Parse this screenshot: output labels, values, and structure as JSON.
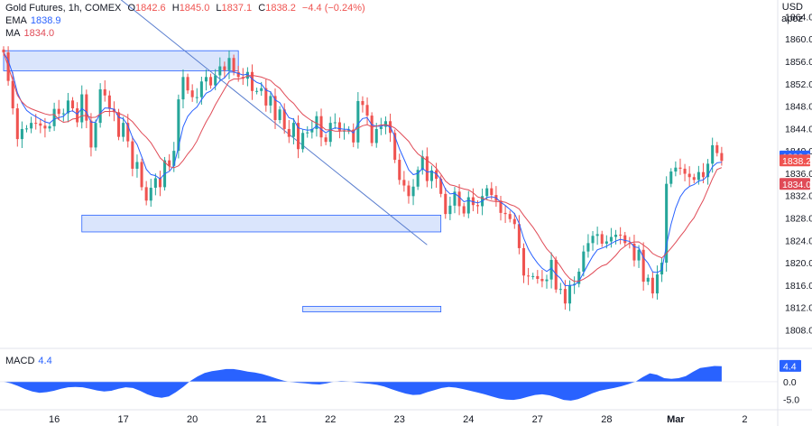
{
  "legend": {
    "title": "Gold Futures, 1h, COMEX",
    "open_label": "O",
    "open": "1842.6",
    "high_label": "H",
    "high": "1845.0",
    "low_label": "L",
    "low": "1837.1",
    "close_label": "C",
    "close": "1838.2",
    "change": "−4.4 (−0.24%)",
    "ema_label": "EMA",
    "ema_value": "1838.9",
    "ma_label": "MA",
    "ma_value": "1834.0",
    "macd_label": "MACD",
    "macd_value": "4.4"
  },
  "axis": {
    "unit_line1": "USD",
    "unit_line2": "apoz"
  },
  "colors": {
    "up": "#26a69a",
    "down": "#ef5350",
    "ema": "#2962ff",
    "ma": "#e04b57",
    "zone_fill": "#d4e1fb",
    "zone_stroke": "#2962ff",
    "trend": "#5b7fcf",
    "macd_fill": "#2962ff",
    "close_tag": "#ef5350",
    "ema_tag": "#2962ff",
    "ma_tag": "#e04b57"
  },
  "chart_data": {
    "type": "candlestick",
    "ylim": [
      1805,
      1866
    ],
    "y_ticks": [
      "1808.0",
      "1812.0",
      "1816.0",
      "1820.0",
      "1824.0",
      "1828.0",
      "1832.0",
      "1836.0",
      "1840.0",
      "1844.0",
      "1848.0",
      "1852.0",
      "1856.0",
      "1860.0",
      "1864.0"
    ],
    "x_ticks": [
      {
        "label": "16",
        "bar": 11
      },
      {
        "label": "17",
        "bar": 26
      },
      {
        "label": "20",
        "bar": 41
      },
      {
        "label": "21",
        "bar": 56
      },
      {
        "label": "22",
        "bar": 71
      },
      {
        "label": "23",
        "bar": 86
      },
      {
        "label": "24",
        "bar": 101
      },
      {
        "label": "27",
        "bar": 116
      },
      {
        "label": "28",
        "bar": 131
      },
      {
        "label": "Mar",
        "bar": 146
      },
      {
        "label": "2",
        "bar": 161
      }
    ],
    "x_max_bar": 167,
    "closes": [
      1857.6,
      1852.5,
      1847.6,
      1842.1,
      1843.9,
      1844.0,
      1845.0,
      1844.9,
      1844.5,
      1844.0,
      1844.4,
      1847.5,
      1846.6,
      1846.7,
      1849.0,
      1847.6,
      1845.1,
      1850.1,
      1845.4,
      1840.6,
      1845.0,
      1851.0,
      1849.9,
      1847.5,
      1846.9,
      1842.5,
      1845.0,
      1841.7,
      1836.8,
      1838.0,
      1833.5,
      1831.1,
      1833.4,
      1835.1,
      1833.5,
      1838.3,
      1837.3,
      1840.0,
      1849.2,
      1853.2,
      1850.8,
      1849.6,
      1849.6,
      1852.4,
      1853.2,
      1851.7,
      1853.5,
      1855.1,
      1854.4,
      1856.6,
      1854.1,
      1853.2,
      1852.9,
      1854.1,
      1850.7,
      1850.7,
      1851.2,
      1848.1,
      1849.8,
      1845.5,
      1847.4,
      1843.9,
      1842.5,
      1845.0,
      1840.3,
      1843.2,
      1843.3,
      1843.9,
      1846.2,
      1842.4,
      1841.6,
      1845.0,
      1845.1,
      1843.6,
      1843.6,
      1843.8,
      1841.5,
      1848.9,
      1848.2,
      1846.3,
      1841.4,
      1843.9,
      1844.3,
      1845.3,
      1843.2,
      1838.4,
      1834.8,
      1833.8,
      1831.9,
      1833.6,
      1836.6,
      1839.0,
      1834.6,
      1836.5,
      1835.0,
      1832.3,
      1828.7,
      1830.2,
      1832.7,
      1830.1,
      1828.8,
      1831.7,
      1830.3,
      1830.1,
      1831.9,
      1833.3,
      1832.1,
      1831.1,
      1828.9,
      1828.7,
      1827.8,
      1826.9,
      1822.6,
      1817.7,
      1817.6,
      1817.6,
      1817.1,
      1816.7,
      1817.0,
      1820.5,
      1815.2,
      1815.3,
      1812.7,
      1816.0,
      1816.2,
      1818.4,
      1822.0,
      1823.5,
      1824.8,
      1825.1,
      1823.4,
      1823.8,
      1824.6,
      1825.0,
      1824.9,
      1823.5,
      1823.4,
      1820.4,
      1822.3,
      1816.6,
      1817.3,
      1814.5,
      1817.9,
      1820.0,
      1834.1,
      1836.3,
      1837.0,
      1836.8,
      1835.9,
      1835.3,
      1834.8,
      1836.2,
      1835.3,
      1837.7,
      1841.0,
      1839.6,
      1838.2
    ],
    "series": [
      {
        "name": "EMA",
        "value": 1838.9
      },
      {
        "name": "MA",
        "value": 1834.0
      }
    ],
    "price_tags": [
      {
        "label": "1838.9",
        "value": 1838.9,
        "color_key": "ema_tag"
      },
      {
        "label": "1838.2",
        "value": 1838.2,
        "color_key": "close_tag"
      },
      {
        "label": "1834.0",
        "value": 1834.0,
        "color_key": "ma_tag"
      }
    ],
    "zones": [
      {
        "bar_from": 0,
        "bar_to": 51,
        "y_from": 1854.3,
        "y_to": 1857.9
      },
      {
        "bar_from": 17,
        "bar_to": 95,
        "y_from": 1825.5,
        "y_to": 1828.5
      },
      {
        "bar_from": 65,
        "bar_to": 95,
        "y_from": 1811.2,
        "y_to": 1812.2
      }
    ],
    "trendline": {
      "bar_from": 24,
      "y_from": 1868,
      "bar_to": 92,
      "y_to": 1823.2
    },
    "macd": {
      "ylim": [
        -7.5,
        9
      ],
      "y_ticks": [
        "-5.0",
        "0.0",
        "4.4"
      ],
      "values": [
        0.0,
        -0.5,
        -1.2,
        -2.1,
        -2.8,
        -3.2,
        -3.0,
        -2.6,
        -2.0,
        -1.6,
        -1.5,
        -1.6,
        -2.0,
        -2.5,
        -2.8,
        -2.6,
        -2.0,
        -1.6,
        -1.8,
        -2.6,
        -3.6,
        -4.3,
        -4.6,
        -4.2,
        -3.0,
        -1.5,
        0.2,
        1.5,
        2.5,
        3.0,
        3.3,
        3.6,
        3.6,
        3.3,
        2.9,
        2.6,
        2.2,
        1.6,
        0.9,
        0.3,
        -0.1,
        -0.3,
        -0.5,
        -0.7,
        -0.8,
        -0.5,
        0.0,
        0.2,
        0.1,
        -0.2,
        -0.4,
        -0.6,
        -0.9,
        -1.4,
        -2.1,
        -2.8,
        -3.4,
        -3.8,
        -3.7,
        -3.0,
        -2.4,
        -1.8,
        -1.5,
        -1.7,
        -2.1,
        -2.6,
        -3.1,
        -3.6,
        -4.2,
        -4.8,
        -5.1,
        -5.2,
        -4.9,
        -4.3,
        -3.8,
        -3.6,
        -3.9,
        -4.5,
        -5.2,
        -5.4,
        -5.0,
        -4.2,
        -3.3,
        -2.6,
        -2.2,
        -1.8,
        -1.3,
        -0.7,
        0.0,
        1.3,
        2.4,
        2.0,
        1.0,
        0.8,
        1.0,
        1.6,
        2.8,
        3.9,
        4.2,
        4.5,
        4.4
      ]
    }
  }
}
